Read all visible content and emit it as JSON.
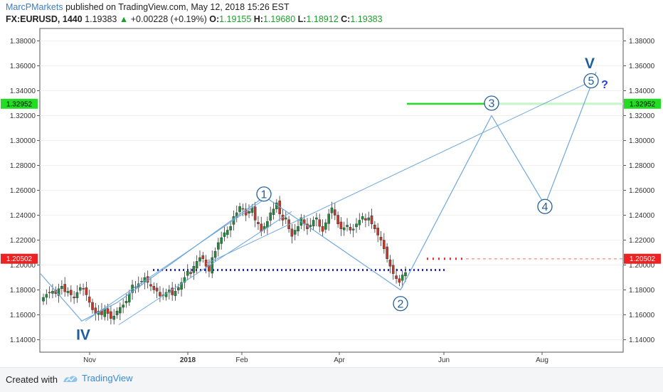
{
  "header": {
    "user": "MarcPMarkets",
    "published_text": "published on TradingView.com, May 12, 2018 15:26 EST"
  },
  "ticker": {
    "symbol": "FX:EURUSD, 1440",
    "last": "1.19383",
    "change": "+0.00228 (+0.19%)",
    "open_label": "O:",
    "open": "1.19155",
    "high_label": "H:",
    "high": "1.19680",
    "low_label": "L:",
    "low": "1.18912",
    "close_label": "C:",
    "close": "1.19383"
  },
  "footer": {
    "created_with": "Created with",
    "brand": "TradingView"
  },
  "colors": {
    "bull": "#1f8a3a",
    "bear": "#c0392b",
    "wave": "#6fa8dc",
    "wave_label": "#1f5f9a",
    "target_green": "#22dd22",
    "target_red": "#ee2222",
    "support_blue": "#2222ee"
  },
  "chart_data": {
    "type": "candlestick",
    "symbol": "EURUSD",
    "timeframe": "1440",
    "ylim": [
      1.13,
      1.39
    ],
    "y_ticks": [
      "1.38000",
      "1.36000",
      "1.34000",
      "1.32000",
      "1.30000",
      "1.28000",
      "1.26000",
      "1.24000",
      "1.22000",
      "1.20000",
      "1.18000",
      "1.16000",
      "1.14000"
    ],
    "x_ticks": [
      "Nov",
      "2018",
      "Feb",
      "Apr",
      "Jun",
      "Aug"
    ],
    "price_tags": [
      {
        "label": "1.32952",
        "value": 1.32952,
        "color": "#22dd22"
      },
      {
        "label": "1.20502",
        "value": 1.20502,
        "color": "#ee2222"
      }
    ],
    "horizontal_lines": [
      {
        "value": 1.3295,
        "style": "solid",
        "color": "#22dd22"
      },
      {
        "value": 1.205,
        "style": "dotted",
        "color": "#ee2222"
      },
      {
        "value": 1.196,
        "style": "dotted",
        "color": "#2222ee"
      }
    ],
    "candles_close": [
      1.174,
      1.1765,
      1.178,
      1.179,
      1.177,
      1.181,
      1.183,
      1.1785,
      1.179,
      1.176,
      1.1735,
      1.178,
      1.182,
      1.181,
      1.176,
      1.17,
      1.164,
      1.161,
      1.163,
      1.16,
      1.165,
      1.161,
      1.157,
      1.159,
      1.163,
      1.166,
      1.168,
      1.171,
      1.177,
      1.184,
      1.182,
      1.185,
      1.187,
      1.19,
      1.186,
      1.183,
      1.18,
      1.179,
      1.175,
      1.176,
      1.178,
      1.18,
      1.176,
      1.179,
      1.182,
      1.186,
      1.19,
      1.195,
      1.193,
      1.199,
      1.203,
      1.206,
      1.205,
      1.199,
      1.195,
      1.206,
      1.211,
      1.218,
      1.222,
      1.226,
      1.228,
      1.231,
      1.239,
      1.242,
      1.247,
      1.245,
      1.24,
      1.243,
      1.246,
      1.236,
      1.233,
      1.227,
      1.231,
      1.235,
      1.242,
      1.245,
      1.25,
      1.241,
      1.236,
      1.238,
      1.229,
      1.223,
      1.228,
      1.231,
      1.238,
      1.233,
      1.229,
      1.232,
      1.236,
      1.238,
      1.231,
      1.227,
      1.234,
      1.241,
      1.246,
      1.24,
      1.233,
      1.229,
      1.23,
      1.232,
      1.228,
      1.229,
      1.233,
      1.236,
      1.239,
      1.236,
      1.238,
      1.233,
      1.229,
      1.224,
      1.22,
      1.213,
      1.205,
      1.199,
      1.193,
      1.189,
      1.186,
      1.192,
      1.194
    ],
    "wave_labels": [
      {
        "label": "IV",
        "value": 1.144,
        "style": "plain"
      },
      {
        "label": "1",
        "value": 1.257,
        "style": "circle"
      },
      {
        "label": "2",
        "value": 1.169,
        "style": "circle"
      },
      {
        "label": "3",
        "value": 1.33,
        "style": "circle"
      },
      {
        "label": "4",
        "value": 1.247,
        "style": "circle"
      },
      {
        "label": "5",
        "value": 1.348,
        "style": "circle"
      },
      {
        "label": "V",
        "value": 1.362,
        "style": "plain"
      },
      {
        "label": "?",
        "value": 1.346,
        "style": "plain"
      }
    ],
    "wave_path": [
      1.193,
      1.155,
      1.17,
      1.255,
      1.18,
      1.32,
      1.248,
      1.355
    ]
  }
}
